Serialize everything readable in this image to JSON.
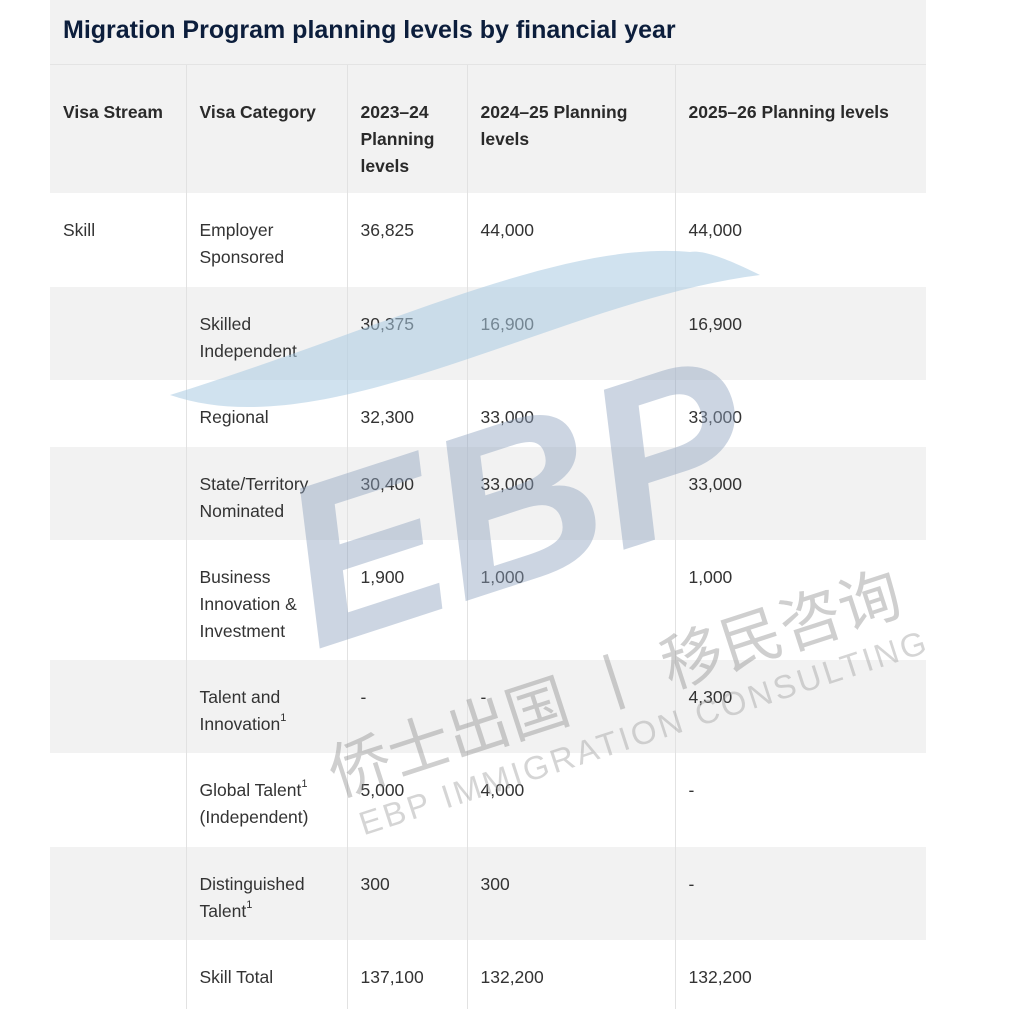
{
  "title": "Migration Program planning levels by financial year",
  "headers": [
    "Visa Stream",
    "Visa Category",
    "2023–24 Planning levels",
    "2024–25 Planning levels",
    "2025–26 Planning levels"
  ],
  "rows": [
    {
      "stream": "Skill",
      "category": "Employer Sponsored",
      "sup": "",
      "y2324": "36,825",
      "y2425": "44,000",
      "y2526": "44,000"
    },
    {
      "stream": "",
      "category": "Skilled Independent",
      "sup": "",
      "y2324": "30,375",
      "y2425": "16,900",
      "y2526": "16,900"
    },
    {
      "stream": "",
      "category": "Regional",
      "sup": "",
      "y2324": "32,300",
      "y2425": "33,000",
      "y2526": "33,000"
    },
    {
      "stream": "",
      "category": "State/Territory Nominated",
      "sup": "",
      "y2324": "30,400",
      "y2425": "33,000",
      "y2526": "33,000"
    },
    {
      "stream": "",
      "category": "Business Innovation & Investment",
      "sup": "",
      "y2324": "1,900",
      "y2425": "1,000",
      "y2526": "1,000"
    },
    {
      "stream": "",
      "category": "Talent and Innovation",
      "sup": "1",
      "y2324": "-",
      "y2425": "-",
      "y2526": "4,300"
    },
    {
      "stream": "",
      "category": "Global Talent",
      "sup": "1",
      "category_suffix": "(Independent)",
      "y2324": "5,000",
      "y2425": "4,000",
      "y2526": "-"
    },
    {
      "stream": "",
      "category": "Distinguished Talent",
      "sup": "1",
      "y2324": "300",
      "y2425": "300",
      "y2526": "-"
    },
    {
      "stream": "",
      "category": "Skill Total",
      "sup": "",
      "y2324": "137,100",
      "y2425": "132,200",
      "y2526": "132,200"
    }
  ],
  "watermark": {
    "logo": "EBP",
    "chinese": "侨士出国丨移民咨询",
    "english": "EBP IMMIGRATION CONSULTING"
  },
  "colors": {
    "title": "#0c1e3c",
    "stripe": "#f2f2f2",
    "watermark_blue": "#9fc3dc"
  }
}
